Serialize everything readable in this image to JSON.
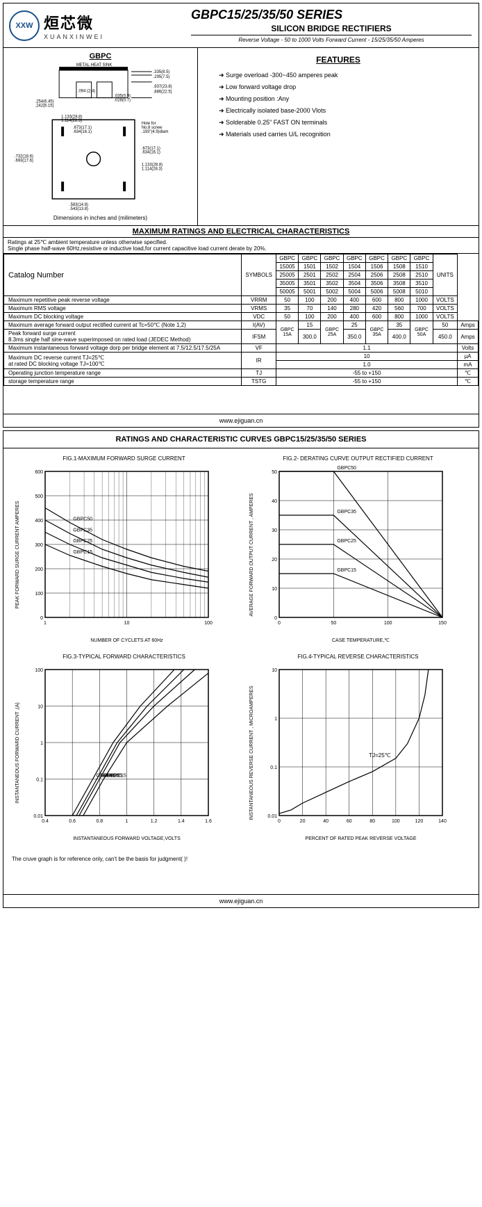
{
  "logo": {
    "cn": "烜芯微",
    "en": "XUANXINWEI",
    "mark": "XXW"
  },
  "header": {
    "series": "GBPC15/25/35/50 SERIES",
    "subtitle": "SILICON BRIDGE RECTIFIERS",
    "spec": "Reverse Voltage - 50 to 1000 Volts    Forward Current -  15/25/35/50 Amperes"
  },
  "diagram": {
    "label": "GBPC",
    "heatsink": "METAL HEAT SINK",
    "dims": [
      ".335(8.5)",
      ".295(7.5)",
      ".937(23.8)",
      ".886(22.5)",
      ".094 (2.4)",
      ".028(0.7)",
      ".035(0.9)",
      ".254(6.45)",
      ".242(6.15)",
      "1.133(28.8)",
      "1.114(28.3)",
      ".673(17.1)",
      ".634(16.1)",
      ".732(18.6)",
      ".693(17.6)",
      ".583(14.8)",
      ".543(13.8)",
      ".673(17.1)",
      ".634(16.1)",
      "1.133(28.8)",
      "1.114(28.3)"
    ],
    "hole": "Hole for No.8 screw .193\"(4.9)diam",
    "note": "Dimensions in inches and (milimeters)"
  },
  "features": {
    "title": "FEATURES",
    "items": [
      "Surge overload -300~450 amperes peak",
      "Low forward voltage drop",
      "Mounting position :Any",
      "Electrically isolated base-2000 Vlots",
      "Solderable 0.25\" FAST ON terminals",
      "Materials used carries U/L recognition"
    ]
  },
  "max_ratings": {
    "title": "MAXIMUM RATINGS AND ELECTRICAL CHARACTERISTICS",
    "note": "Ratings at 25℃ ambient temperature unless otherwise specified.\nSingle phase half-wave 60Hz,resistive or inductive load,for current capacitive load current derate by 20%.",
    "catalog_label": "Catalog          Number",
    "symbols_label": "SYMBOLS",
    "units_label": "UNITS",
    "gbpc_header": "GBPC",
    "part_rows": [
      [
        "15005",
        "1501",
        "1502",
        "1504",
        "1506",
        "1508",
        "1510"
      ],
      [
        "25005",
        "2501",
        "2502",
        "2504",
        "2506",
        "2508",
        "2510"
      ],
      [
        "35005",
        "3501",
        "3502",
        "3504",
        "3506",
        "3508",
        "3510"
      ],
      [
        "50005",
        "5001",
        "5002",
        "5004",
        "5006",
        "5008",
        "5010"
      ]
    ],
    "rows": [
      {
        "label": "Maximum repetitive peak reverse voltage",
        "sym": "VRRM",
        "vals": [
          "50",
          "100",
          "200",
          "400",
          "600",
          "800",
          "1000"
        ],
        "unit": "VOLTS"
      },
      {
        "label": "Maximum RMS voltage",
        "sym": "VRMS",
        "vals": [
          "35",
          "70",
          "140",
          "280",
          "420",
          "560",
          "700"
        ],
        "unit": "VOLTS"
      },
      {
        "label": "Maximum DC blocking voltage",
        "sym": "VDC",
        "vals": [
          "50",
          "100",
          "200",
          "400",
          "600",
          "800",
          "1000"
        ],
        "unit": "VOLTS"
      }
    ],
    "iav": {
      "label": "Maximum average forward output rectified current at  Tc=50℃ (Note 1,2)",
      "sym": "I(AV)",
      "gbpc": [
        "GBPC 15A",
        "GBPC 25A",
        "GBPC 35A",
        "GBPC 50A"
      ],
      "vals": [
        "15",
        "25",
        "35",
        "50"
      ],
      "unit": "Amps"
    },
    "ifsm": {
      "label": "Peak forward surge current\n8.3ms single half sine-wave superimposed on rated load (JEDEC Method)",
      "sym": "IFSM",
      "vals": [
        "300.0",
        "350.0",
        "400.0",
        "450.0"
      ],
      "unit": "Amps"
    },
    "vf": {
      "label": "Maximum instantaneous forward voltage dorp per bridge element at 7.5/12.5/17.5/25A",
      "sym": "VF",
      "val": "1.1",
      "unit": "Volts"
    },
    "ir": {
      "label": "Maximum DC reverse current       TJ=25℃\nat rated DC blocking voltage       TJ=100℃",
      "sym": "IR",
      "vals": [
        "10",
        "1.0"
      ],
      "units": [
        "μA",
        "mA"
      ]
    },
    "tj": {
      "label": "Operating junction temperature range",
      "sym": "TJ",
      "val": "-55 to +150",
      "unit": "℃"
    },
    "tstg": {
      "label": "storage temperature range",
      "sym": "TSTG",
      "val": "-55 to +150",
      "unit": "℃"
    }
  },
  "footer_url": "www.ejiguan.cn",
  "page2": {
    "title": "RATINGS AND CHARACTERISTIC CURVES GBPC15/25/35/50 SERIES",
    "fig1": {
      "title": "FIG.1-MAXIMUM FORWARD SURGE CURRENT",
      "ylabel": "PEAK FORWARD SURGE CURRENT AMPERES",
      "xlabel": "NUMBER OF CYCLETS AT 60Hz",
      "ylim": [
        0,
        600
      ],
      "ytick": 100,
      "xlog": [
        1,
        10,
        100
      ],
      "series": [
        {
          "name": "GBPC50",
          "color": "#000",
          "pts": [
            [
              1,
              450
            ],
            [
              2,
              390
            ],
            [
              5,
              320
            ],
            [
              10,
              280
            ],
            [
              20,
              245
            ],
            [
              50,
              210
            ],
            [
              100,
              190
            ]
          ]
        },
        {
          "name": "GBPC35",
          "color": "#000",
          "pts": [
            [
              1,
              400
            ],
            [
              2,
              345
            ],
            [
              5,
              280
            ],
            [
              10,
              245
            ],
            [
              20,
              215
            ],
            [
              50,
              185
            ],
            [
              100,
              165
            ]
          ]
        },
        {
          "name": "GBPC25",
          "color": "#000",
          "pts": [
            [
              1,
              350
            ],
            [
              2,
              300
            ],
            [
              5,
              245
            ],
            [
              10,
              215
            ],
            [
              20,
              185
            ],
            [
              50,
              160
            ],
            [
              100,
              145
            ]
          ]
        },
        {
          "name": "GBPC15",
          "color": "#000",
          "pts": [
            [
              1,
              300
            ],
            [
              2,
              255
            ],
            [
              5,
              210
            ],
            [
              10,
              180
            ],
            [
              20,
              155
            ],
            [
              50,
              135
            ],
            [
              100,
              120
            ]
          ]
        }
      ]
    },
    "fig2": {
      "title": "FIG.2- DERATING CURVE OUTPUT RECTIFIED CURRENT",
      "ylabel": "AVERAGE FORWARD OUTPUT CURRENT , AMPERES",
      "xlabel": "CASE TEMPERATURE,℃",
      "ylim": [
        0,
        50
      ],
      "ytick": 10,
      "xlim": [
        0,
        150
      ],
      "xtick": 50,
      "series": [
        {
          "name": "GBPC50",
          "pts": [
            [
              0,
              50
            ],
            [
              50,
              50
            ],
            [
              150,
              0
            ]
          ]
        },
        {
          "name": "GBPC35",
          "pts": [
            [
              0,
              35
            ],
            [
              50,
              35
            ],
            [
              150,
              0
            ]
          ]
        },
        {
          "name": "GBPC25",
          "pts": [
            [
              0,
              25
            ],
            [
              50,
              25
            ],
            [
              150,
              0
            ]
          ]
        },
        {
          "name": "GBPC15",
          "pts": [
            [
              0,
              15
            ],
            [
              50,
              15
            ],
            [
              150,
              0
            ]
          ]
        }
      ]
    },
    "fig3": {
      "title": "FIG.3-TYPICAL FORWARD CHARACTERISTICS",
      "ylabel": "INSTANTANEOUS  FORWARD  CURRENT ,(A)",
      "xlabel": "INSTANTANEOUS FORWARD VOLTAGE,VOLTS",
      "ylog": [
        0.01,
        0.1,
        1,
        10,
        100
      ],
      "xlim": [
        0.4,
        1.6
      ],
      "xtick": 0.2,
      "series": [
        {
          "name": "GBPC50",
          "pts": [
            [
              0.6,
              0.01
            ],
            [
              0.75,
              0.1
            ],
            [
              0.9,
              1
            ],
            [
              1.1,
              10
            ],
            [
              1.35,
              100
            ]
          ]
        },
        {
          "name": "GBPC25",
          "pts": [
            [
              0.65,
              0.01
            ],
            [
              0.8,
              0.1
            ],
            [
              0.95,
              1
            ],
            [
              1.2,
              10
            ],
            [
              1.5,
              100
            ]
          ]
        },
        {
          "name": "GBPC35",
          "pts": [
            [
              0.63,
              0.01
            ],
            [
              0.78,
              0.1
            ],
            [
              0.93,
              1
            ],
            [
              1.15,
              10
            ],
            [
              1.42,
              100
            ]
          ]
        },
        {
          "name": "GBPC15",
          "pts": [
            [
              0.68,
              0.01
            ],
            [
              0.83,
              0.1
            ],
            [
              1.0,
              1
            ],
            [
              1.3,
              10
            ],
            [
              1.6,
              80
            ]
          ]
        }
      ]
    },
    "fig4": {
      "title": "FIG.4-TYPICAL REVERSE CHARACTERISTICS",
      "ylabel": "INSTANTANEOUS  REVERSE  CURRENT , MICROAMPERES",
      "xlabel": "PERCENT OF RATED PEAK REVERSE VOLTAGE",
      "ylog": [
        0.01,
        0.1,
        1,
        10
      ],
      "xlim": [
        0,
        140
      ],
      "xtick": 20,
      "annotation": "TJ=25℃",
      "series": [
        {
          "name": "",
          "pts": [
            [
              0,
              0.011
            ],
            [
              10,
              0.013
            ],
            [
              20,
              0.018
            ],
            [
              40,
              0.03
            ],
            [
              60,
              0.05
            ],
            [
              80,
              0.08
            ],
            [
              100,
              0.15
            ],
            [
              110,
              0.3
            ],
            [
              120,
              1
            ],
            [
              125,
              3
            ],
            [
              128,
              10
            ]
          ]
        }
      ]
    },
    "disclaimer": "The cruve graph is for reference only, can't be the basis for judgment(                              )!"
  }
}
